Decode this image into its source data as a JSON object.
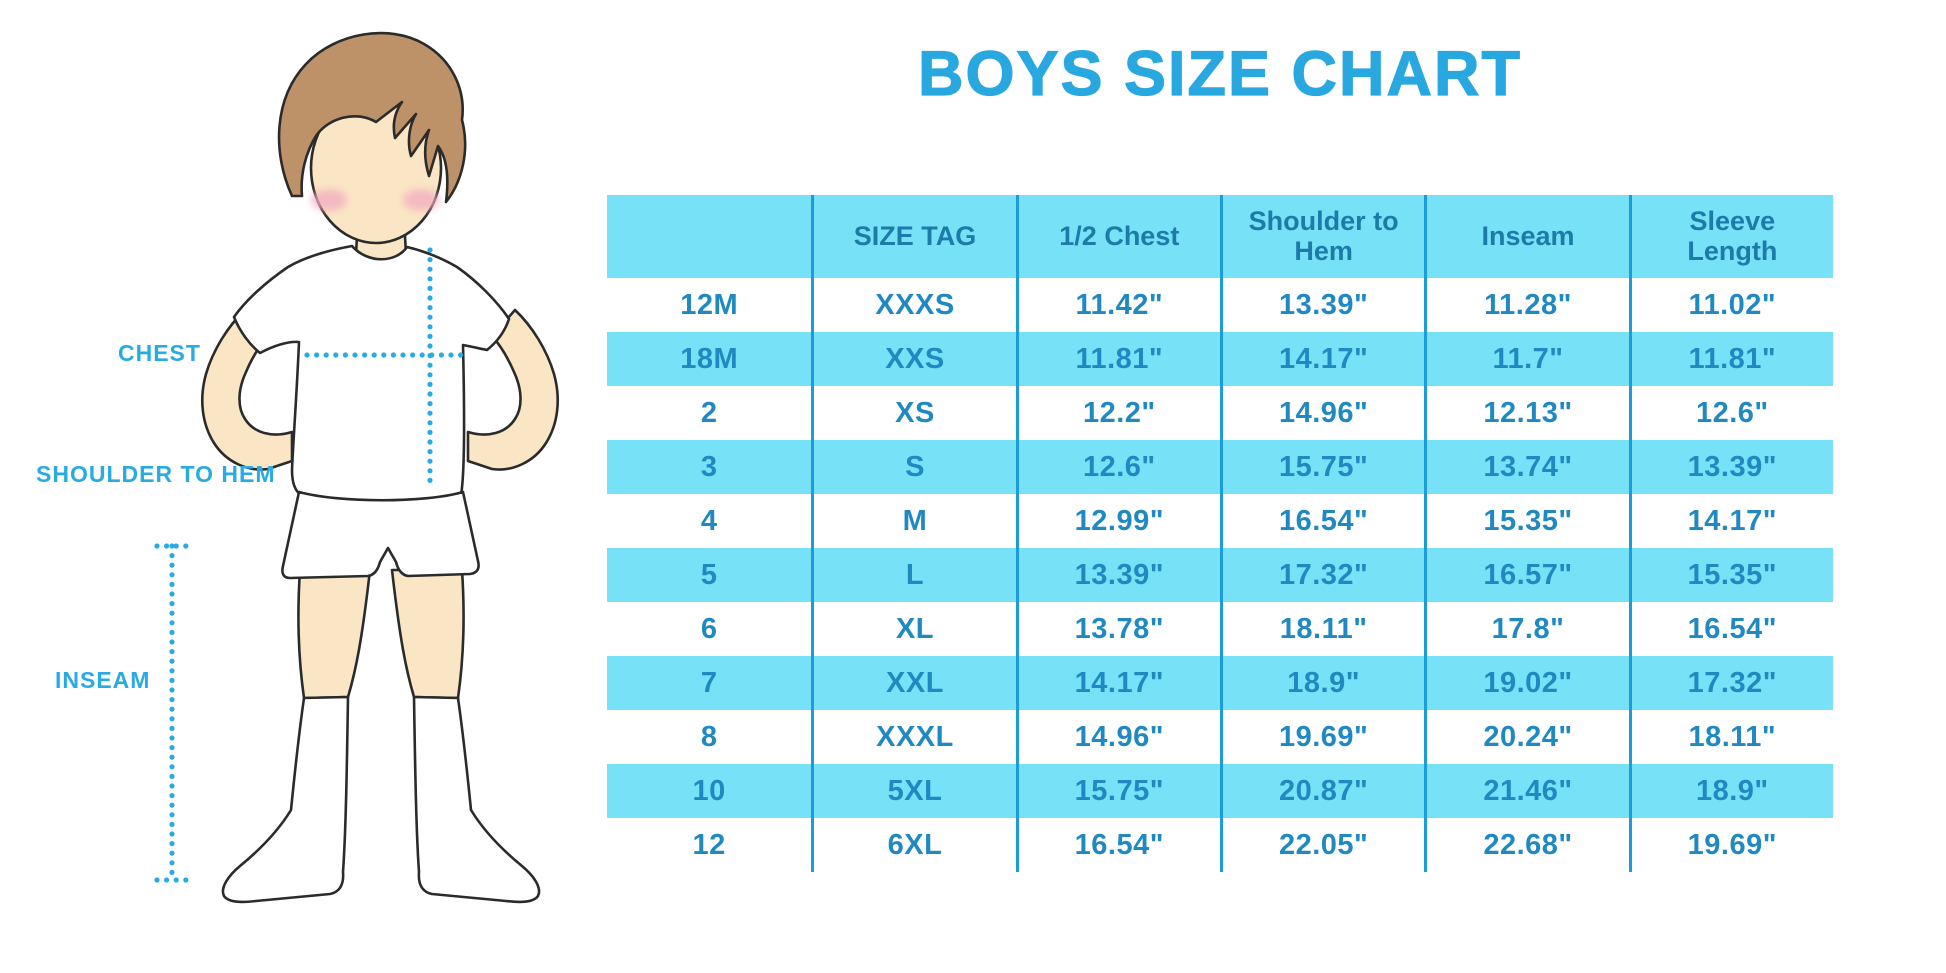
{
  "title": "BOYS SIZE CHART",
  "diagram": {
    "chest_label": "CHEST",
    "shoulder_to_hem_label": "SHOULDER TO HEM",
    "inseam_label": "INSEAM",
    "colors": {
      "label_blue": "#29ABE2",
      "dotted_line": "#29ABE2",
      "skin": "#FAE6C4",
      "hair": "#BE9269",
      "blush": "#F2AEC1",
      "outline": "#2B2B2B",
      "garment_white": "#FFFFFF"
    }
  },
  "table_style": {
    "band_cyan": "#77E1F8",
    "divider_blue": "#1C9CD8",
    "header_text": "#1D7BA9",
    "cell_text": "#2189C2"
  },
  "chart_data": {
    "type": "table",
    "title": "BOYS SIZE CHART",
    "columns": [
      "",
      "SIZE TAG",
      "1/2 Chest",
      "Shoulder to Hem",
      "Inseam",
      "Sleeve Length"
    ],
    "rows": [
      [
        "12M",
        "XXXS",
        "11.42\"",
        "13.39\"",
        "11.28\"",
        "11.02\""
      ],
      [
        "18M",
        "XXS",
        "11.81\"",
        "14.17\"",
        "11.7\"",
        "11.81\""
      ],
      [
        "2",
        "XS",
        "12.2\"",
        "14.96\"",
        "12.13\"",
        "12.6\""
      ],
      [
        "3",
        "S",
        "12.6\"",
        "15.75\"",
        "13.74\"",
        "13.39\""
      ],
      [
        "4",
        "M",
        "12.99\"",
        "16.54\"",
        "15.35\"",
        "14.17\""
      ],
      [
        "5",
        "L",
        "13.39\"",
        "17.32\"",
        "16.57\"",
        "15.35\""
      ],
      [
        "6",
        "XL",
        "13.78\"",
        "18.11\"",
        "17.8\"",
        "16.54\""
      ],
      [
        "7",
        "XXL",
        "14.17\"",
        "18.9\"",
        "19.02\"",
        "17.32\""
      ],
      [
        "8",
        "XXXL",
        "14.96\"",
        "19.69\"",
        "20.24\"",
        "18.11\""
      ],
      [
        "10",
        "5XL",
        "15.75\"",
        "20.87\"",
        "21.46\"",
        "18.9\""
      ],
      [
        "12",
        "6XL",
        "16.54\"",
        "22.05\"",
        "22.68\"",
        "19.69\""
      ]
    ],
    "layout": {
      "striped_rows": true,
      "stripe_pattern": "white/cyan alternating starting white",
      "gridlines": "vertical only",
      "units": "inches"
    }
  }
}
